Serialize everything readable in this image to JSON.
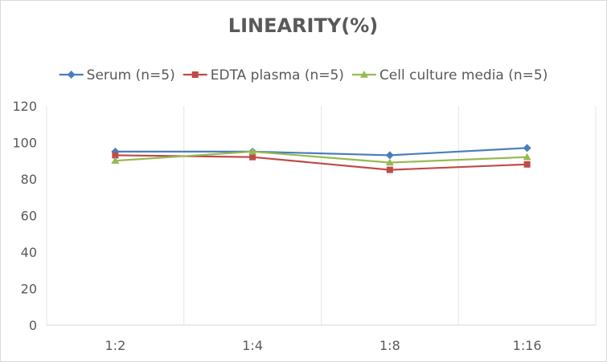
{
  "chart_data": {
    "type": "line",
    "title": "LINEARITY(%)",
    "xlabel": "",
    "ylabel": "",
    "categories": [
      "1:2",
      "1:4",
      "1:8",
      "1:16"
    ],
    "ylim": [
      0,
      120
    ],
    "yticks": [
      0,
      20,
      40,
      60,
      80,
      100,
      120
    ],
    "grid": true,
    "grid_orientation": "vertical",
    "legend_position": "top",
    "series": [
      {
        "name": "Serum (n=5)",
        "values": [
          95,
          95,
          93,
          97
        ],
        "color": "#4a7ebb",
        "marker": "diamond"
      },
      {
        "name": "EDTA plasma (n=5)",
        "values": [
          93,
          92,
          85,
          88
        ],
        "color": "#be4b48",
        "marker": "square"
      },
      {
        "name": "Cell culture media (n=5)",
        "values": [
          90,
          95,
          89,
          92
        ],
        "color": "#98b954",
        "marker": "triangle"
      }
    ]
  }
}
